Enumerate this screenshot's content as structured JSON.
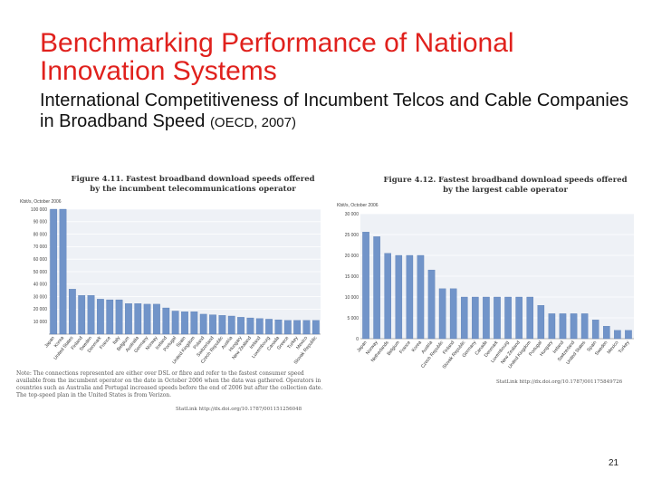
{
  "slide": {
    "title": "Benchmarking Performance of National Innovation Systems",
    "subtitle_main": "International Competitiveness of Incumbent Telcos and Cable Companies in Broadband Speed",
    "subtitle_source": "(OECD, 2007)",
    "page_number": "21"
  },
  "figures": {
    "fig1": {
      "number": "Figure 4.11.",
      "title_line1": "Fastest broadband download speeds offered",
      "title_line2": "by the incumbent telecommunications operator",
      "unit": "Kbit/s, October 2006",
      "note": "Note: The connections represented are either over DSL or fibre and refer to the fastest consumer speed available from the incumbent operator on the date in October 2006 when the data was gathered. Operators in countries such as Australia and Portugal increased speeds before the end of 2006 but after the collection date. The top-speed plan in the United States is from Verizon.",
      "statlink": "StatLink  http://dx.doi.org/10.1787/001151256048"
    },
    "fig2": {
      "number": "Figure 4.12.",
      "title_line1": "Fastest broadband download speeds offered",
      "title_line2": "by the largest cable operator",
      "unit": "Kbit/s, October 2006",
      "statlink": "StatLink  http://dx.doi.org/10.1787/001175849726"
    }
  },
  "chart_data": [
    {
      "type": "bar",
      "title": "Fastest broadband download speeds offered by the incumbent telecommunications operator",
      "ylabel": "Kbit/s, October 2006",
      "ylim": [
        0,
        100000
      ],
      "yticks": [
        10000,
        20000,
        30000,
        40000,
        50000,
        60000,
        70000,
        80000,
        90000,
        100000
      ],
      "ytick_labels": [
        "10 000",
        "20 000",
        "30 000",
        "40 000",
        "50 000",
        "60 000",
        "70 000",
        "80 000",
        "90 000",
        "100 000"
      ],
      "categories": [
        "Japan",
        "Korea",
        "United States",
        "Finland",
        "Sweden",
        "Denmark",
        "France",
        "Italy",
        "Belgium",
        "Australia",
        "Germany",
        "Norway",
        "Iceland",
        "Portugal",
        "Spain",
        "United Kingdom",
        "Poland",
        "Switzerland",
        "Czech Republic",
        "Austria",
        "Hungary",
        "New Zealand",
        "Ireland",
        "Luxembourg",
        "Canada",
        "Greece",
        "Turkey",
        "Mexico",
        "Slovak Republic"
      ],
      "values": [
        100000,
        100000,
        36000,
        31000,
        31000,
        28000,
        27500,
        27500,
        24500,
        24500,
        24000,
        24000,
        21000,
        18500,
        18000,
        18000,
        16000,
        15500,
        15000,
        14500,
        13500,
        13000,
        12500,
        12000,
        11500,
        11000,
        11000,
        11000,
        11000
      ]
    },
    {
      "type": "bar",
      "title": "Fastest broadband download speeds offered by the largest cable operator",
      "ylabel": "Kbit/s, October 2006",
      "ylim": [
        0,
        30000
      ],
      "yticks": [
        0,
        5000,
        10000,
        15000,
        20000,
        25000,
        30000
      ],
      "ytick_labels": [
        "0",
        "5 000",
        "10 000",
        "15 000",
        "20 000",
        "25 000",
        "30 000"
      ],
      "categories": [
        "Japan",
        "Norway",
        "Netherlands",
        "Belgium",
        "France",
        "Korea",
        "Austria",
        "Czech Republic",
        "Finland",
        "Slovak Republic",
        "Germany",
        "Canada",
        "Denmark",
        "Luxembourg",
        "New Zealand",
        "United Kingdom",
        "Portugal",
        "Hungary",
        "Ireland",
        "Switzerland",
        "United States",
        "Spain",
        "Sweden",
        "Mexico",
        "Turkey"
      ],
      "values": [
        25600,
        24500,
        20500,
        20000,
        20000,
        20000,
        16500,
        12000,
        12000,
        10000,
        10000,
        10000,
        10000,
        10000,
        10000,
        10000,
        8000,
        6000,
        6000,
        6000,
        6000,
        4500,
        3000,
        2000,
        2000
      ]
    }
  ]
}
